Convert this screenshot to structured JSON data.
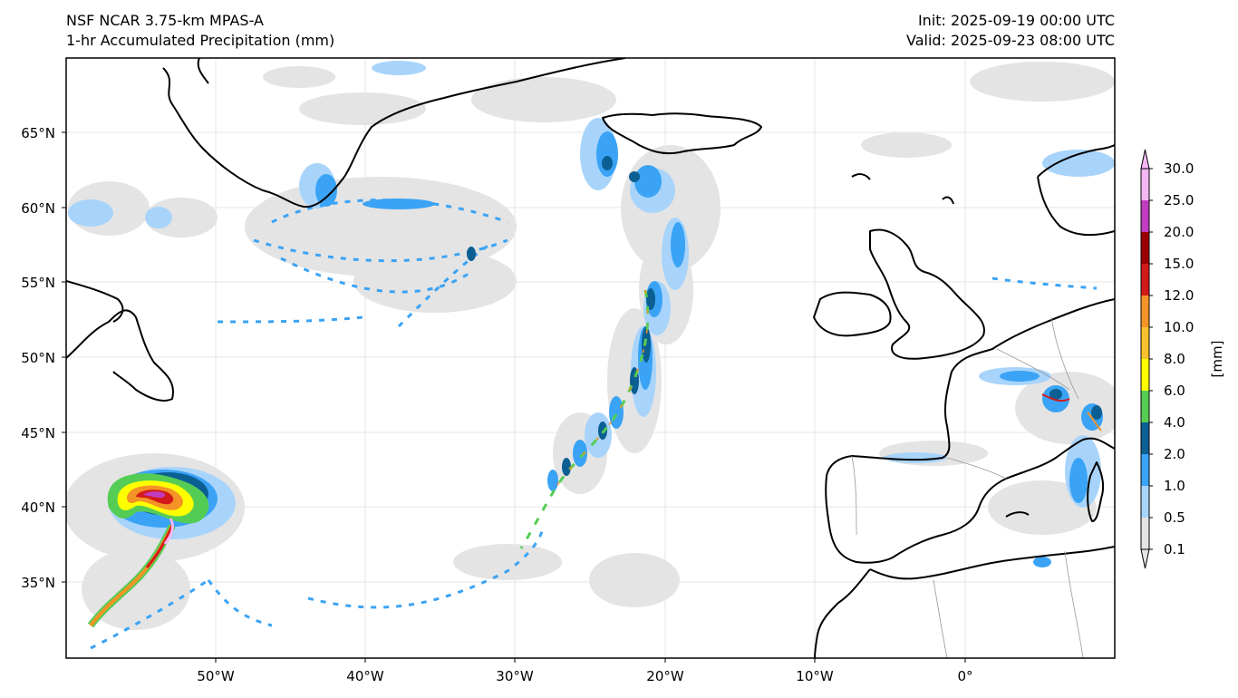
{
  "header": {
    "model": "NSF NCAR 3.75-km MPAS-A",
    "field": "1-hr Accumulated Precipitation (mm)",
    "init": "Init: 2025-09-19 00:00 UTC",
    "valid": "Valid: 2025-09-23 08:00 UTC"
  },
  "axes": {
    "lat_labels": [
      "65°N",
      "60°N",
      "55°N",
      "50°N",
      "45°N",
      "40°N",
      "35°N"
    ],
    "lon_labels": [
      "50°W",
      "40°W",
      "30°W",
      "20°W",
      "10°W",
      "0°"
    ]
  },
  "colorbar": {
    "unit_label": "[mm]",
    "levels": [
      "0.1",
      "0.5",
      "1.0",
      "2.0",
      "4.0",
      "6.0",
      "8.0",
      "10.0",
      "12.0",
      "15.0",
      "20.0",
      "25.0",
      "30.0"
    ],
    "colors": [
      "#e4e4e4",
      "#a8d4fb",
      "#3aa3f5",
      "#0c5f92",
      "#55cd55",
      "#ffff00",
      "#f8c22c",
      "#f49326",
      "#d21a1a",
      "#9a0000",
      "#c13cbf",
      "#f4b7f3"
    ]
  }
}
